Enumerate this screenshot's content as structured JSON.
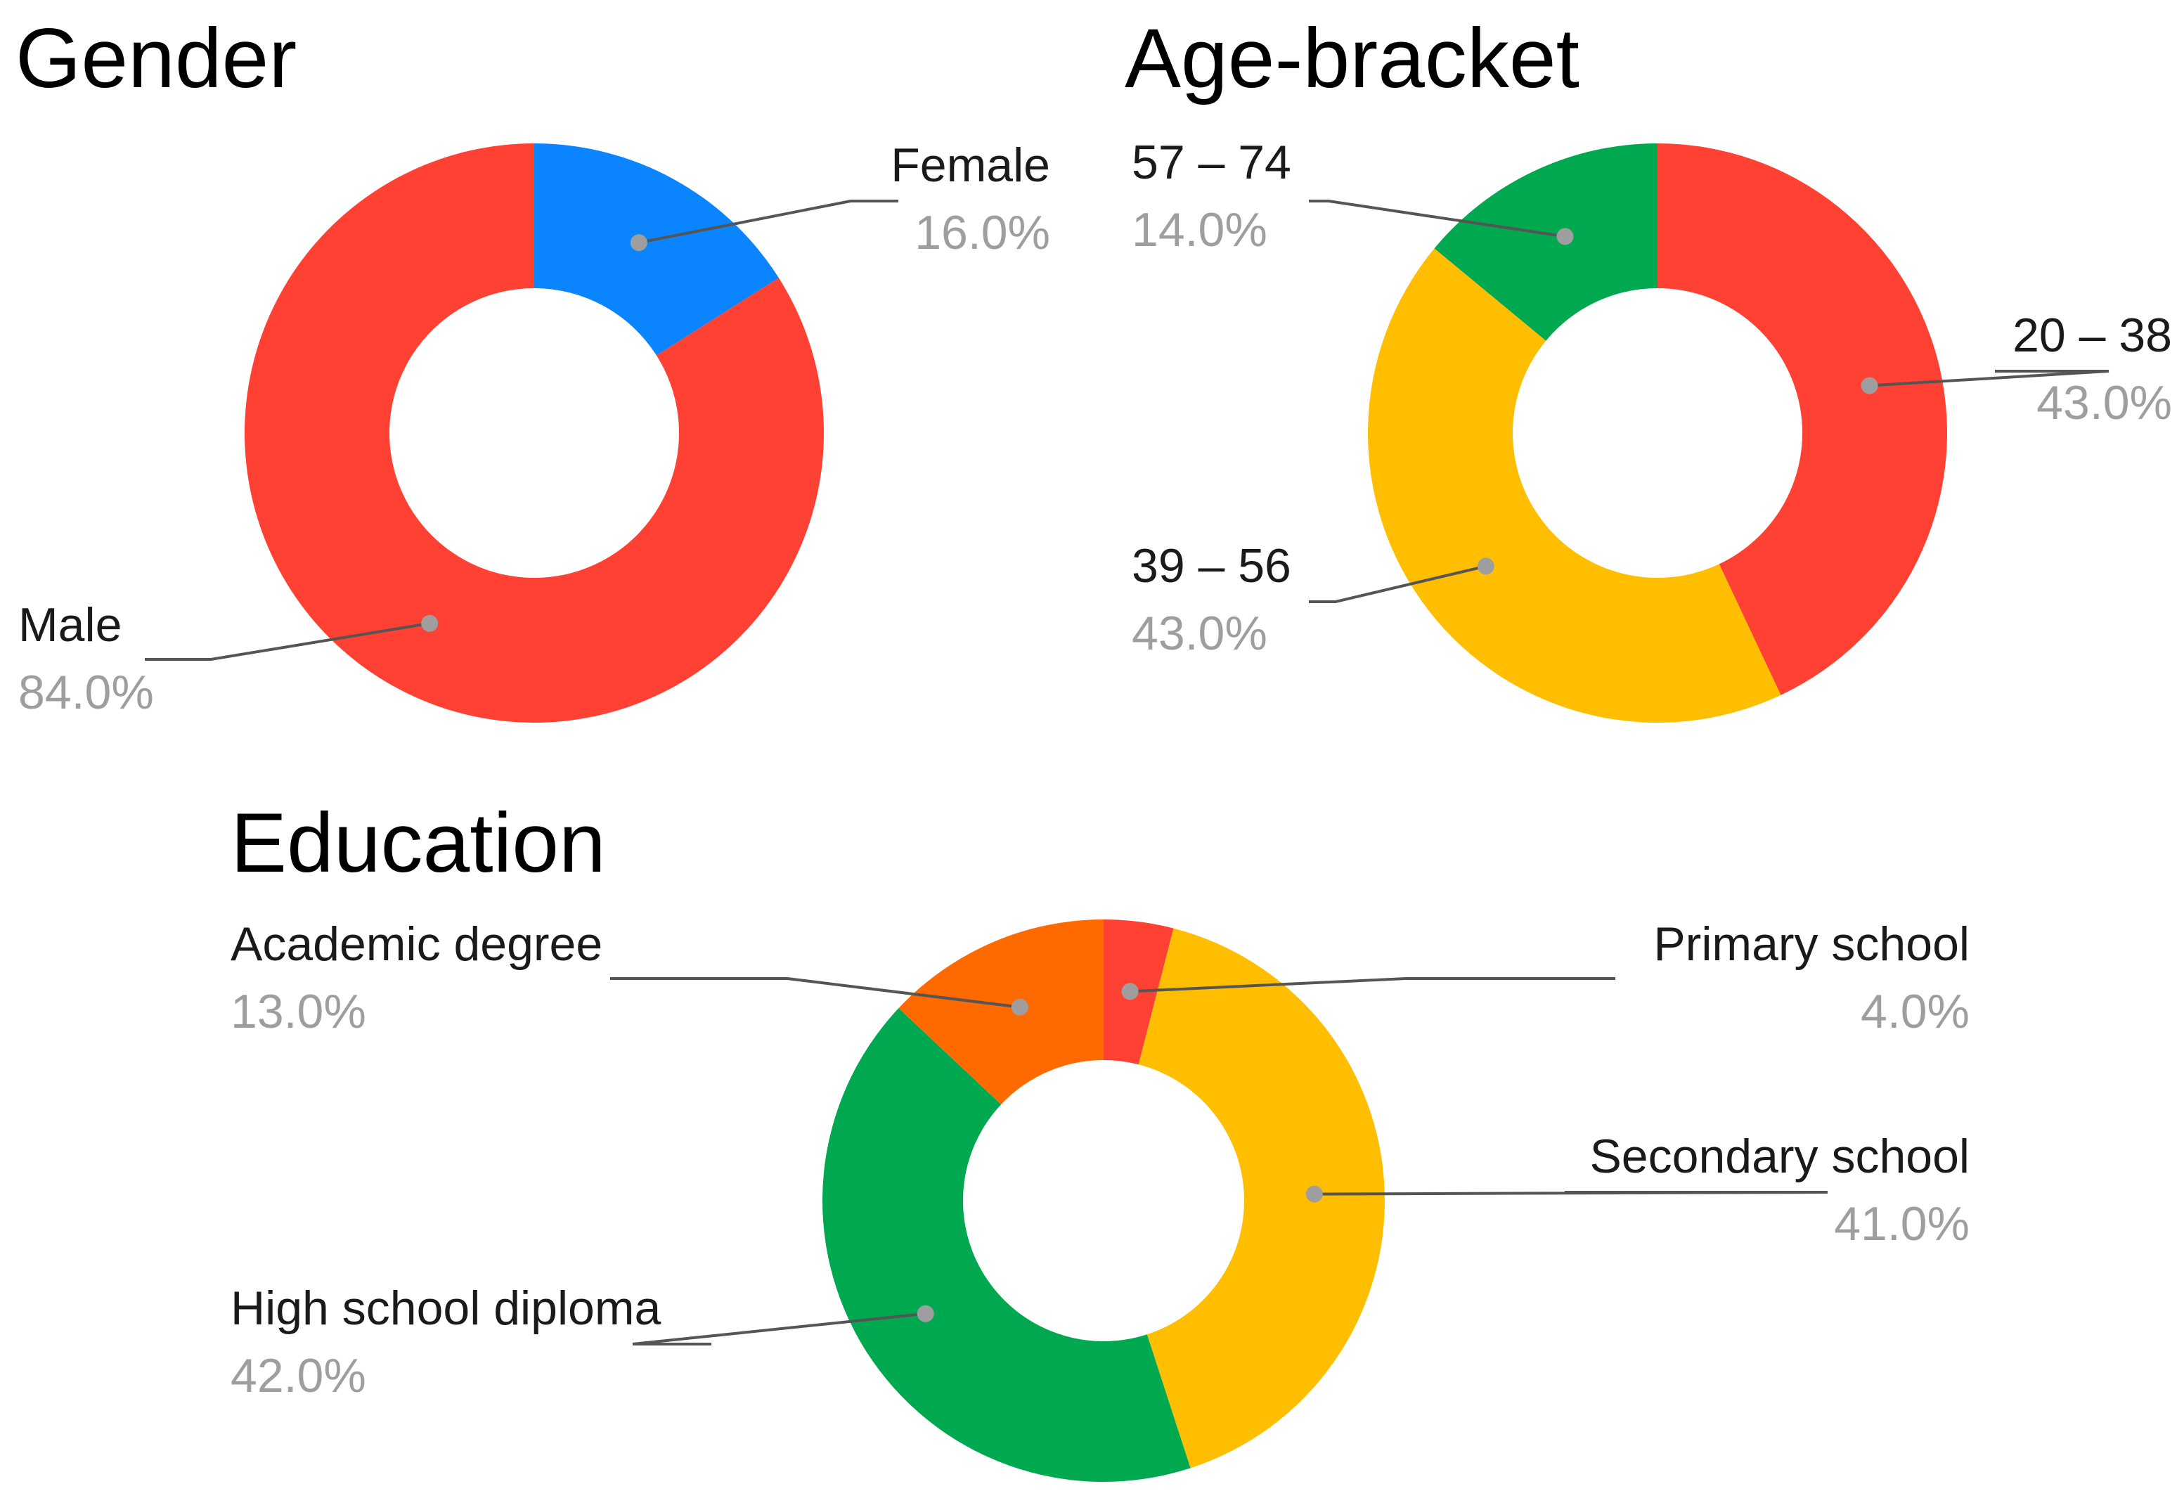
{
  "chart_data": [
    {
      "type": "pie",
      "title": "Gender",
      "donut": true,
      "categories": [
        "Female",
        "Male"
      ],
      "values": [
        16.0,
        84.0
      ],
      "value_labels": [
        "16.0%",
        "84.0%"
      ],
      "colors": [
        "#0a84ff",
        "#ff4133"
      ]
    },
    {
      "type": "pie",
      "title": "Age-bracket",
      "donut": true,
      "categories": [
        "20 – 38",
        "39 – 56",
        "57 – 74"
      ],
      "values": [
        43.0,
        43.0,
        14.0
      ],
      "value_labels": [
        "43.0%",
        "43.0%",
        "14.0%"
      ],
      "colors": [
        "#ff4133",
        "#ffbf00",
        "#00a94f"
      ]
    },
    {
      "type": "pie",
      "title": "Education",
      "donut": true,
      "categories": [
        "Primary school",
        "Secondary school",
        "High school diploma",
        "Academic degree"
      ],
      "values": [
        4.0,
        41.0,
        42.0,
        13.0
      ],
      "value_labels": [
        "4.0%",
        "41.0%",
        "42.0%",
        "13.0%"
      ],
      "colors": [
        "#ff4133",
        "#ffbf00",
        "#00a94f",
        "#ff6a00"
      ]
    }
  ]
}
